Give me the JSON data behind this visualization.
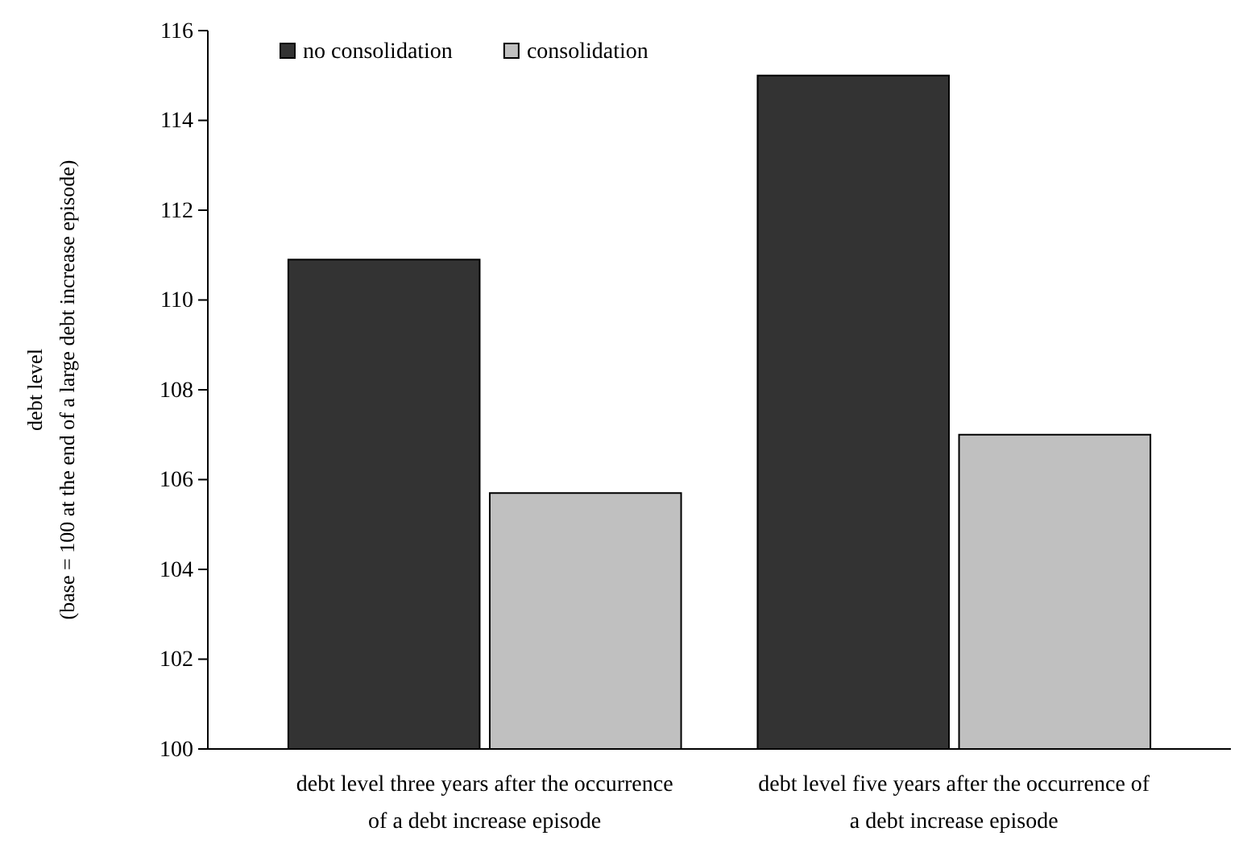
{
  "chart_data": {
    "type": "bar",
    "ylabel": "debt level\n(base = 100 at the end of a large debt increase episode)",
    "categories": [
      "debt level three years after the occurrence\nof a debt increase episode",
      "debt level five years after the occurrence of\na debt increase episode"
    ],
    "series": [
      {
        "name": "no consolidation",
        "color": "#333333",
        "values": [
          110.9,
          115.0
        ]
      },
      {
        "name": "consolidation",
        "color": "#c0c0c0",
        "values": [
          105.7,
          107.0
        ]
      }
    ],
    "ylim": [
      100,
      116
    ],
    "yticks": [
      100,
      102,
      104,
      106,
      108,
      110,
      112,
      114,
      116
    ],
    "grid": false,
    "legend": "top left"
  }
}
